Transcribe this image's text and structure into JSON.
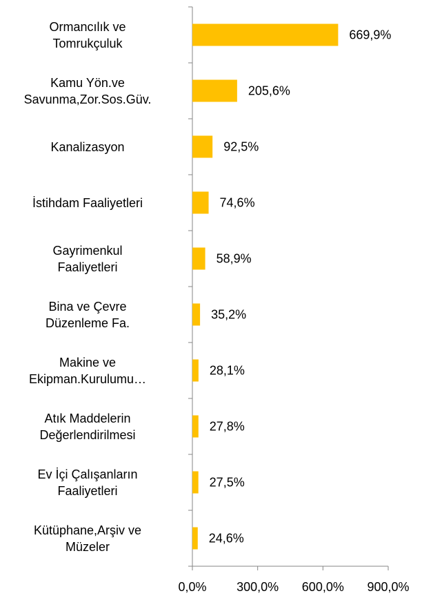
{
  "chart_data": {
    "type": "bar",
    "orientation": "horizontal",
    "categories": [
      "Ormancılık ve\nTomrukçuluk",
      "Kamu Yön.ve\nSavunma,Zor.Sos.Güv.",
      "Kanalizasyon",
      "İstihdam Faaliyetleri",
      "Gayrimenkul\nFaaliyetleri",
      "Bina ve Çevre\nDüzenleme Fa.",
      "Makine ve\nEkipman.Kurulumu…",
      "Atık Maddelerin\nDeğerlendirilmesi",
      "Ev İçi Çalışanların\nFaaliyetleri",
      "Kütüphane,Arşiv ve\nMüzeler"
    ],
    "values": [
      669.9,
      205.6,
      92.5,
      74.6,
      58.9,
      35.2,
      28.1,
      27.8,
      27.5,
      24.6
    ],
    "value_labels": [
      "669,9%",
      "205,6%",
      "92,5%",
      "74,6%",
      "58,9%",
      "35,2%",
      "28,1%",
      "27,8%",
      "27,5%",
      "24,6%"
    ],
    "color": "#ffc000",
    "xlim": [
      0,
      900
    ],
    "xticks": [
      {
        "value": 0,
        "label": "0,0%"
      },
      {
        "value": 300,
        "label": "300,0%"
      },
      {
        "value": 600,
        "label": "600,0%"
      },
      {
        "value": 900,
        "label": "900,0%"
      }
    ]
  }
}
